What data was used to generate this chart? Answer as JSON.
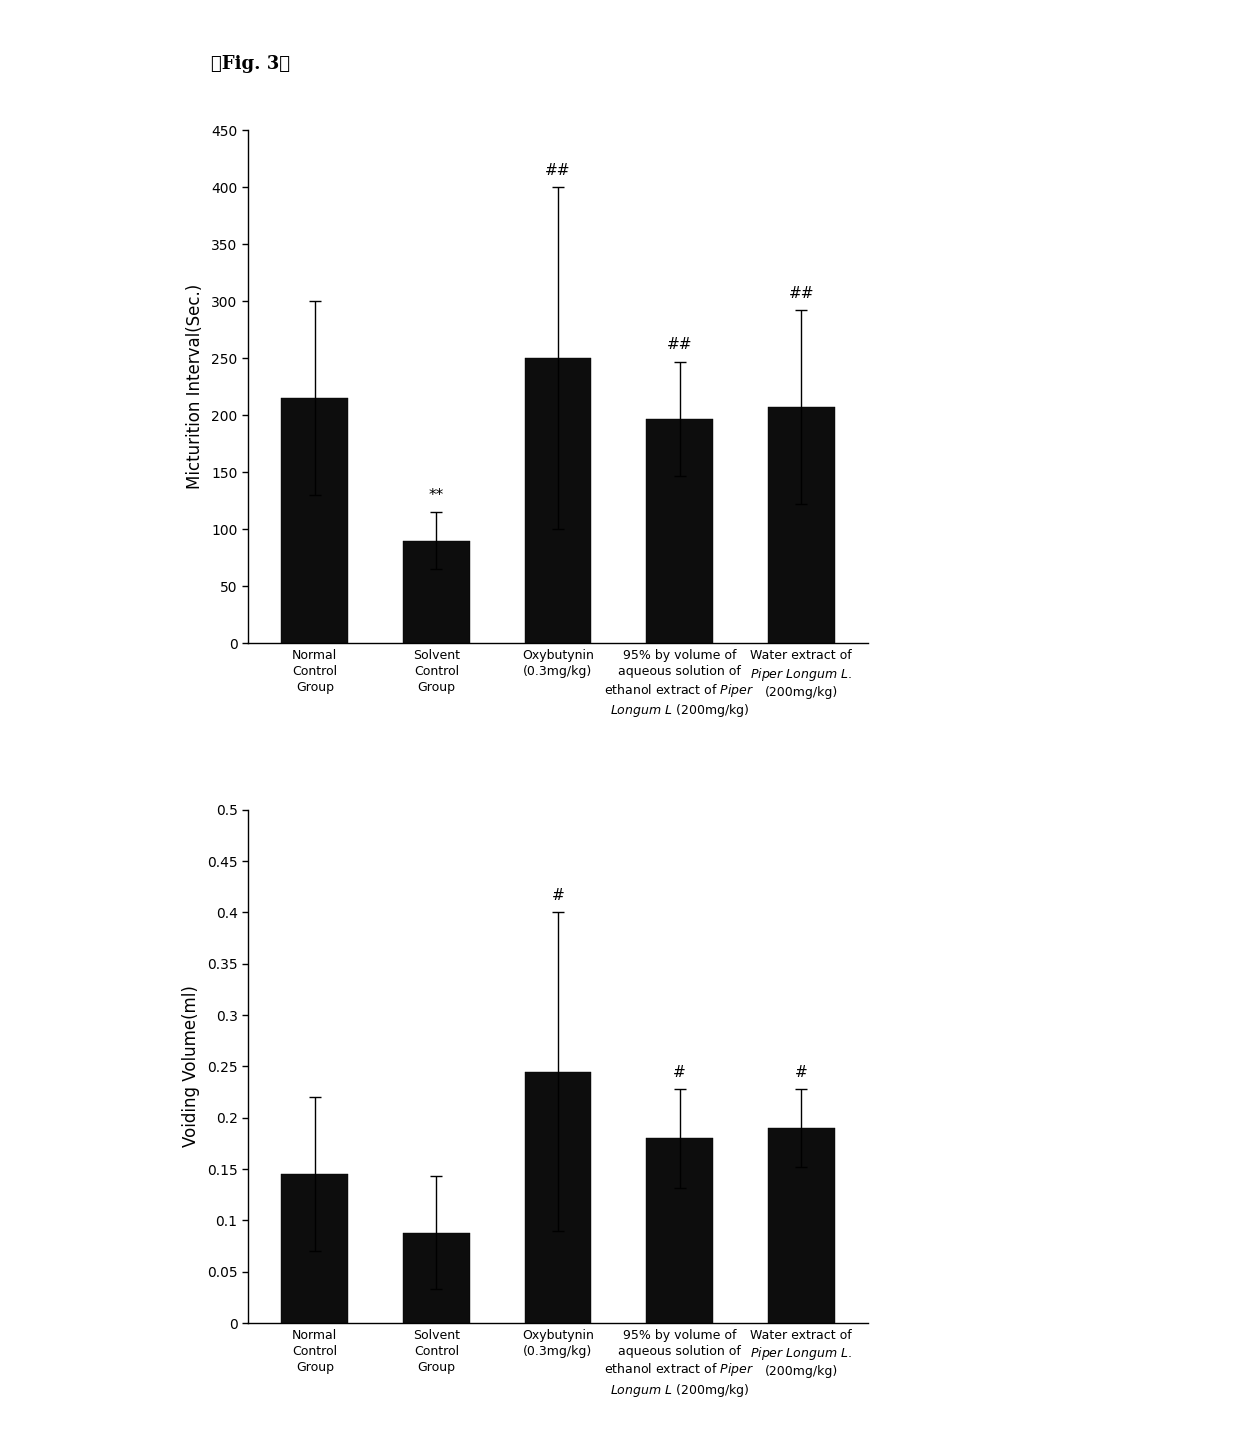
{
  "fig_label": "【Fig. 3】",
  "chart1": {
    "ylabel": "Micturition Interval(Sec.)",
    "ylim": [
      0,
      450
    ],
    "yticks": [
      0,
      50,
      100,
      150,
      200,
      250,
      300,
      350,
      400,
      450
    ],
    "bar_values": [
      215,
      90,
      250,
      197,
      207
    ],
    "bar_errors": [
      85,
      25,
      150,
      50,
      85
    ],
    "bar_color": "#0d0d0d",
    "annotations": [
      "",
      "**",
      "##",
      "##",
      "##"
    ],
    "categories": [
      "Normal\nControl\nGroup",
      "Solvent\nControl\nGroup",
      "Oxybutynin\n(0.3mg/kg)",
      "95% by volume of\naqueous solution of\nethanol extract of $\\it{Piper}$\n$\\it{Longum}$ $\\it{L}$ (200mg/kg)",
      "Water extract of\n$\\it{Piper}$ $\\it{Longum}$ $\\it{L}$.\n(200mg/kg)"
    ]
  },
  "chart2": {
    "ylabel": "Voiding Volume(ml)",
    "ylim": [
      0,
      0.5
    ],
    "yticks": [
      0,
      0.05,
      0.1,
      0.15,
      0.2,
      0.25,
      0.3,
      0.35,
      0.4,
      0.45,
      0.5
    ],
    "bar_values": [
      0.145,
      0.088,
      0.245,
      0.18,
      0.19
    ],
    "bar_errors": [
      0.075,
      0.055,
      0.155,
      0.048,
      0.038
    ],
    "bar_color": "#0d0d0d",
    "annotations": [
      "",
      "",
      "#",
      "#",
      "#"
    ],
    "categories": [
      "Normal\nControl\nGroup",
      "Solvent\nControl\nGroup",
      "Oxybutynin\n(0.3mg/kg)",
      "95% by volume of\naqueous solution of\nethanol extract of $\\it{Piper}$\n$\\it{Longum}$ $\\it{L}$ (200mg/kg)",
      "Water extract of\n$\\it{Piper}$ $\\it{Longum}$ $\\it{L}$.\n(200mg/kg)"
    ]
  },
  "background_color": "#ffffff",
  "bar_width": 0.55,
  "annotation_fontsize": 11,
  "axis_label_fontsize": 12,
  "tick_fontsize": 10,
  "category_fontsize": 9,
  "fig_label_fontsize": 13
}
